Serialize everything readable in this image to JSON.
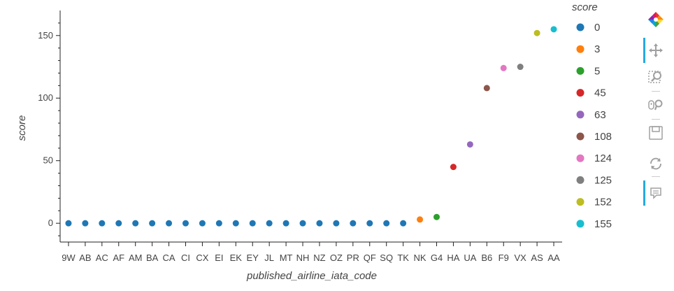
{
  "chart_data": {
    "type": "scatter",
    "xlabel": "published_airline_iata_code",
    "ylabel": "score",
    "categories": [
      "9W",
      "AB",
      "AC",
      "AF",
      "AM",
      "BA",
      "CA",
      "CI",
      "CX",
      "EI",
      "EK",
      "EY",
      "JL",
      "MT",
      "NH",
      "NZ",
      "OZ",
      "PR",
      "QF",
      "SQ",
      "TK",
      "NK",
      "G4",
      "HA",
      "UA",
      "B6",
      "F9",
      "VX",
      "AS",
      "AA"
    ],
    "values": [
      0,
      0,
      0,
      0,
      0,
      0,
      0,
      0,
      0,
      0,
      0,
      0,
      0,
      0,
      0,
      0,
      0,
      0,
      0,
      0,
      0,
      3,
      5,
      45,
      63,
      108,
      124,
      125,
      152,
      155
    ],
    "ylim": [
      -15,
      170
    ],
    "yticks": [
      0,
      50,
      100,
      150
    ],
    "grid": false,
    "legend": {
      "title": "score",
      "placement": "right",
      "entries": [
        {
          "label": "0",
          "color": "#1f77b4"
        },
        {
          "label": "3",
          "color": "#ff7f0e"
        },
        {
          "label": "5",
          "color": "#2ca02c"
        },
        {
          "label": "45",
          "color": "#d62728"
        },
        {
          "label": "63",
          "color": "#9467bd"
        },
        {
          "label": "108",
          "color": "#8c564b"
        },
        {
          "label": "124",
          "color": "#e377c2"
        },
        {
          "label": "125",
          "color": "#7f7f7f"
        },
        {
          "label": "152",
          "color": "#bcbd22"
        },
        {
          "label": "155",
          "color": "#17becf"
        }
      ]
    }
  },
  "toolbar": {
    "tools": [
      {
        "name": "bokeh-logo",
        "icon": "bokeh-logo-icon",
        "active": false
      },
      {
        "name": "pan",
        "icon": "pan-icon",
        "active": true
      },
      {
        "name": "box-zoom",
        "icon": "box-zoom-icon",
        "active": false
      },
      {
        "name": "wheel-zoom",
        "icon": "wheel-zoom-icon",
        "active": false
      },
      {
        "name": "save",
        "icon": "save-icon",
        "active": false
      },
      {
        "name": "reset",
        "icon": "reset-icon",
        "active": false
      },
      {
        "name": "hover",
        "icon": "hover-icon",
        "active": true
      }
    ]
  }
}
